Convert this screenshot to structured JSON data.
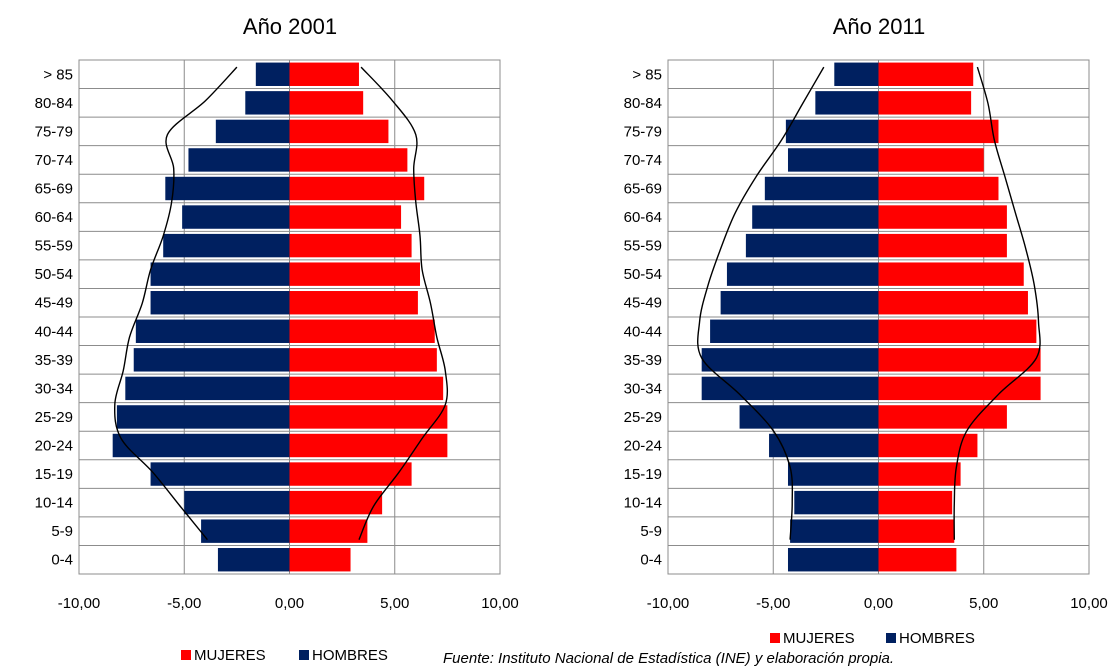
{
  "chart_data": [
    {
      "type": "bar",
      "title": "Año 2001",
      "categories": [
        "0-4",
        "5-9",
        "10-14",
        "15-19",
        "20-24",
        "25-29",
        "30-34",
        "35-39",
        "40-44",
        "45-49",
        "50-54",
        "55-59",
        "60-64",
        "65-69",
        "70-74",
        "75-79",
        "80-84",
        "> 85"
      ],
      "series": [
        {
          "name": "MUJERES",
          "color": "#ff0000",
          "values": [
            2.9,
            3.7,
            4.4,
            5.8,
            7.5,
            7.5,
            7.3,
            7.0,
            6.9,
            6.1,
            6.2,
            5.8,
            5.3,
            6.4,
            5.6,
            4.7,
            3.5,
            3.3
          ]
        },
        {
          "name": "HOMBRES",
          "color": "#002060",
          "values": [
            -3.4,
            -4.2,
            -5.0,
            -6.6,
            -8.4,
            -8.2,
            -7.8,
            -7.4,
            -7.3,
            -6.6,
            -6.6,
            -6.0,
            -5.1,
            -5.9,
            -4.8,
            -3.5,
            -2.1,
            -1.6
          ]
        }
      ],
      "trend_women": [
        3.3,
        4.0,
        5.2,
        6.3,
        7.4,
        7.4,
        7.0,
        6.7,
        6.3,
        6.2,
        6.0,
        5.9,
        6.0,
        4.9,
        3.4
      ],
      "trend_men": [
        -3.9,
        -5.2,
        -6.5,
        -8.0,
        -8.3,
        -7.9,
        -7.6,
        -7.0,
        -6.6,
        -6.0,
        -5.6,
        -5.5,
        -5.8,
        -4.0,
        -2.5
      ],
      "xlim": [
        -10,
        10
      ],
      "xticks": [
        "-10,00",
        "-5,00",
        "0,00",
        "5,00",
        "10,00"
      ],
      "grid": true,
      "legend_position": "bottom"
    },
    {
      "type": "bar",
      "title": "Año 2011",
      "categories": [
        "0-4",
        "5-9",
        "10-14",
        "15-19",
        "20-24",
        "25-29",
        "30-34",
        "35-39",
        "40-44",
        "45-49",
        "50-54",
        "55-59",
        "60-64",
        "65-69",
        "70-74",
        "75-79",
        "80-84",
        "> 85"
      ],
      "series": [
        {
          "name": "MUJERES",
          "color": "#ff0000",
          "values": [
            3.7,
            3.6,
            3.5,
            3.9,
            4.7,
            6.1,
            7.7,
            7.7,
            7.5,
            7.1,
            6.9,
            6.1,
            6.1,
            5.7,
            5.0,
            5.7,
            4.4,
            4.5
          ]
        },
        {
          "name": "HOMBRES",
          "color": "#002060",
          "values": [
            -4.3,
            -4.2,
            -4.0,
            -4.3,
            -5.2,
            -6.6,
            -8.4,
            -8.4,
            -8.0,
            -7.5,
            -7.2,
            -6.3,
            -6.0,
            -5.4,
            -4.3,
            -4.4,
            -3.0,
            -2.1
          ]
        }
      ],
      "trend_women": [
        3.6,
        3.6,
        3.7,
        4.2,
        5.7,
        7.5,
        7.6,
        7.4,
        7.0,
        6.5,
        6.0,
        5.5,
        5.2,
        4.7
      ],
      "trend_men": [
        -4.2,
        -4.1,
        -4.2,
        -5.0,
        -6.6,
        -8.4,
        -8.5,
        -8.1,
        -7.5,
        -6.8,
        -5.8,
        -4.6,
        -3.6,
        -2.6
      ],
      "xlim": [
        -10,
        10
      ],
      "xticks": [
        "-10,00",
        "-5,00",
        "0,00",
        "5,00",
        "10,00"
      ],
      "grid": true,
      "legend_position": "top"
    }
  ],
  "legend": {
    "women_label": "MUJERES",
    "men_label": "HOMBRES"
  },
  "source_text": "Fuente: Instituto Nacional de Estadística (INE) y elaboración propia."
}
